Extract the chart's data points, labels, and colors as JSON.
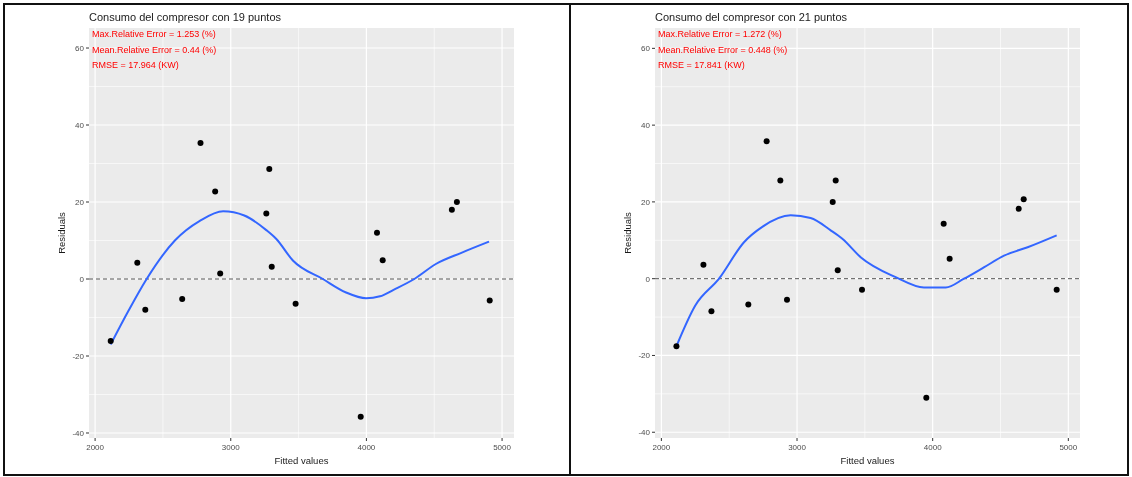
{
  "chart_data": [
    {
      "type": "scatter",
      "title": "Consumo del compresor con 19 puntos",
      "xlabel": "Fitted values",
      "ylabel": "Residuals",
      "annotations": [
        "Max.Relative Error = 1.253 (%)",
        "Mean.Relative Error = 0.44 (%)",
        "RMSE = 17.964 (KW)"
      ],
      "xlim": [
        1955,
        5088
      ],
      "xticks": [
        2000,
        3000,
        4000,
        5000
      ],
      "ylim": [
        -41.3,
        65.2
      ],
      "yticks": [
        -40,
        -20,
        0,
        20,
        40,
        60
      ],
      "grid": true,
      "marker": "circle",
      "ref_lines": [
        {
          "axis": "y",
          "value": 0,
          "color": "#555555",
          "line_style": "dashed"
        }
      ],
      "series": [
        {
          "type": "scatter",
          "color": "#000000",
          "x": [
            2115,
            2311,
            2370,
            2642,
            2777,
            2885,
            2922,
            3262,
            3284,
            3302,
            3478,
            3958,
            4078,
            4120,
            4630,
            4667,
            4909
          ],
          "values": [
            -16.1,
            4.2,
            -8,
            -5.2,
            35.3,
            22.7,
            1.4,
            17,
            28.6,
            3.2,
            -6.4,
            -35.8,
            12,
            4.9,
            18,
            20,
            -5.6
          ]
        },
        {
          "type": "line",
          "color": "#3366ff",
          "marker": "none",
          "line_style": "solid",
          "x": [
            2115,
            2250,
            2380,
            2588,
            2772,
            2944,
            3100,
            3262,
            3336,
            3458,
            3679,
            3850,
            3998,
            4100,
            4200,
            4353,
            4512,
            4700,
            4904
          ],
          "values": [
            -17,
            -8,
            0,
            10,
            15.1,
            17.6,
            16.5,
            12.7,
            10.4,
            4.8,
            0,
            -3.5,
            -5,
            -4.5,
            -2.8,
            0,
            3.9,
            6.8,
            9.7
          ]
        }
      ]
    },
    {
      "type": "scatter",
      "title": "Consumo del compresor con 21 puntos",
      "xlabel": "Fitted values",
      "ylabel": "Residuals",
      "annotations": [
        "Max.Relative Error = 1.272 (%)",
        "Mean.Relative Error = 0.448 (%)",
        "RMSE = 17.841 (KW)"
      ],
      "xlim": [
        1953,
        5086
      ],
      "xticks": [
        2000,
        3000,
        4000,
        5000
      ],
      "ylim": [
        -41.5,
        65.3
      ],
      "yticks": [
        -40,
        -20,
        0,
        20,
        40,
        60
      ],
      "grid": true,
      "marker": "circle",
      "ref_lines": [
        {
          "axis": "y",
          "value": 0,
          "color": "#555555",
          "line_style": "dashed"
        }
      ],
      "series": [
        {
          "type": "scatter",
          "color": "#000000",
          "x": [
            2111,
            2310,
            2369,
            2641,
            2776,
            2877,
            2926,
            3263,
            3285,
            3300,
            3479,
            3953,
            4081,
            4125,
            4634,
            4671,
            4914
          ],
          "values": [
            -17.6,
            3.6,
            -8.5,
            -6.7,
            35.8,
            25.6,
            -5.5,
            20,
            25.6,
            2.2,
            -2.9,
            -31,
            14.3,
            5.2,
            18.2,
            20.7,
            -2.9
          ]
        },
        {
          "type": "line",
          "color": "#3366ff",
          "marker": "none",
          "line_style": "solid",
          "x": [
            2111,
            2250,
            2425,
            2609,
            2744,
            2953,
            3100,
            3248,
            3334,
            3469,
            3727,
            3936,
            4096,
            4231,
            4380,
            4526,
            4700,
            4914
          ],
          "values": [
            -17.6,
            -7,
            0,
            9.5,
            13.5,
            16.5,
            15.8,
            12.6,
            10.4,
            5.6,
            0.4,
            -2.3,
            -2.3,
            0,
            3,
            6,
            8.2,
            11.3
          ]
        }
      ]
    }
  ]
}
